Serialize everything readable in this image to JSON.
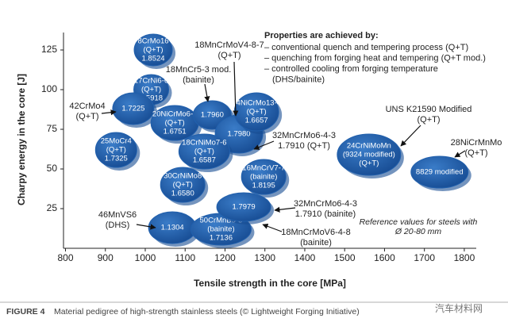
{
  "chart_data": {
    "type": "scatter",
    "x_label": "Tensile strength in the core [MPa]",
    "y_label": "Charpy energy in the core [J]",
    "xlim": [
      795,
      1830
    ],
    "ylim": [
      0,
      136
    ],
    "xticks": [
      800,
      900,
      1000,
      1100,
      1200,
      1300,
      1400,
      1500,
      1600,
      1700,
      1800
    ],
    "yticks": [
      25,
      50,
      75,
      100,
      125
    ],
    "color": "#2160ad",
    "points": [
      {
        "label": [
          "8CrMo16",
          "(Q+T)",
          "1.8524"
        ],
        "x": 1020,
        "y": 125
      },
      {
        "label": [
          "17CrNi6-6",
          "(Q+T)",
          "1.5918"
        ],
        "x": 1015,
        "y": 100
      },
      {
        "label": [
          "1.7225"
        ],
        "x": 970,
        "y": 88
      },
      {
        "label": [
          "20NiCrMo6-4",
          "(Q+T)",
          "1.6751"
        ],
        "x": 1074,
        "y": 79
      },
      {
        "label": [
          "1.7960"
        ],
        "x": 1168,
        "y": 84
      },
      {
        "label": [
          "1.7980"
        ],
        "x": 1235,
        "y": 72
      },
      {
        "label": [
          "14NiCrMo13-4",
          "(Q+T)",
          "1.6657"
        ],
        "x": 1279,
        "y": 86
      },
      {
        "label": [
          "25MoCr4",
          "(Q+T)",
          "1.7325"
        ],
        "x": 927,
        "y": 62
      },
      {
        "label": [
          "18CrNiMo7-6",
          "(Q+T)",
          "1.6587"
        ],
        "x": 1148,
        "y": 61
      },
      {
        "label": [
          "16MnCrV7-7",
          "(bainite)",
          "1.8195"
        ],
        "x": 1297,
        "y": 45
      },
      {
        "label": [
          "30CrNiMo8",
          "(Q+T)",
          "1.6580"
        ],
        "x": 1094,
        "y": 40
      },
      {
        "label": [
          "24CrNiMoMn",
          "(9324 modified)",
          "(Q+T)"
        ],
        "x": 1561,
        "y": 59
      },
      {
        "label": [
          "8829 modified"
        ],
        "x": 1738,
        "y": 48
      },
      {
        "label": [
          "1.1304"
        ],
        "x": 1068,
        "y": 13
      },
      {
        "label": [
          "50CrMnB5-3",
          "(bainite)",
          "1.7136"
        ],
        "x": 1190,
        "y": 12
      },
      {
        "label": [
          "1.7979"
        ],
        "x": 1247,
        "y": 26
      }
    ],
    "annotations": [
      [
        "18MnCrMoV4-8-7",
        "(Q+T)"
      ],
      [
        "18MnCr5-3 mod.",
        "(bainite)"
      ],
      [
        "42CrMo4",
        "(Q+T)"
      ],
      [
        "32MnCrMo6-4-3",
        "1.7910 (Q+T)"
      ],
      [
        "UNS K21590 Modified",
        "(Q+T)"
      ],
      [
        "28NiCrMnMo",
        "(Q+T)"
      ],
      [
        "46MnVS6",
        "(DHS)"
      ],
      [
        "32MnCrMo6-4-3",
        "1.7910 (bainite)"
      ],
      [
        "18MnCrMoV6-4-8",
        "(bainite)"
      ]
    ],
    "properties": {
      "title": "Properties are achieved by:",
      "items": [
        "– conventional quench and tempering process (Q+T)",
        "– quenching from forging heat and tempering (Q+T mod.)",
        "– controlled cooling from forging temperature",
        "(DHS/bainite)"
      ]
    },
    "reference_note": [
      "Reference values for steels with",
      "Ø 20-80 mm"
    ],
    "caption_label": "FIGURE 4",
    "caption_text": "Material pedigree of high-strength stainless steels (© Lightweight Forging Initiative)",
    "watermark": "汽车材料网"
  }
}
